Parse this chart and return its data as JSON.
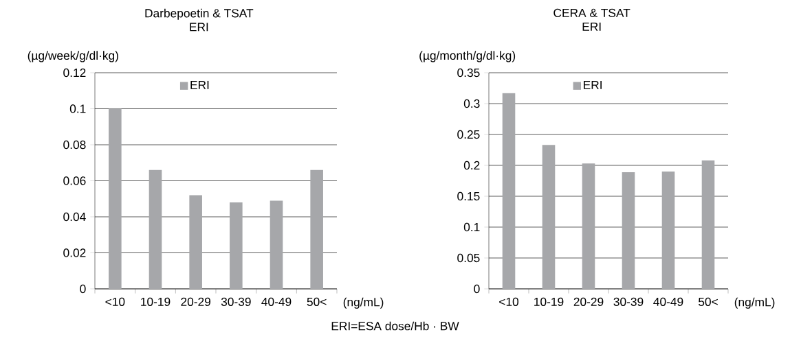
{
  "chart_data": [
    {
      "type": "bar",
      "title": "Darbepoetin & TSAT",
      "subtitle": "ERI",
      "ylabel": "(µg/week/g/dl·kg)",
      "xlabel": "(ng/mL)",
      "categories": [
        "<10",
        "10-19",
        "20-29",
        "30-39",
        "40-49",
        "50<"
      ],
      "series": [
        {
          "name": "ERI",
          "color": "#a6a7aa",
          "values": [
            0.1,
            0.066,
            0.052,
            0.048,
            0.049,
            0.066
          ]
        }
      ],
      "ylim": [
        0,
        0.12
      ],
      "yticks": [
        0,
        0.02,
        0.04,
        0.06,
        0.08,
        0.1,
        0.12
      ],
      "grid": "y",
      "legend": "top",
      "annotations": [
        "ERI=ESA dose/Hb · BW"
      ]
    },
    {
      "type": "bar",
      "title": "CERA & TSAT",
      "subtitle": "ERI",
      "ylabel": "(µg/month/g/dl·kg)",
      "xlabel": "(ng/mL)",
      "categories": [
        "<10",
        "10-19",
        "20-29",
        "30-39",
        "40-49",
        "50<"
      ],
      "series": [
        {
          "name": "ERI",
          "color": "#a6a7aa",
          "values": [
            0.317,
            0.233,
            0.203,
            0.189,
            0.19,
            0.208
          ]
        }
      ],
      "ylim": [
        0,
        0.35
      ],
      "yticks": [
        0,
        0.05,
        0.1,
        0.15,
        0.2,
        0.25,
        0.3,
        0.35
      ],
      "grid": "y",
      "legend": "top"
    }
  ]
}
